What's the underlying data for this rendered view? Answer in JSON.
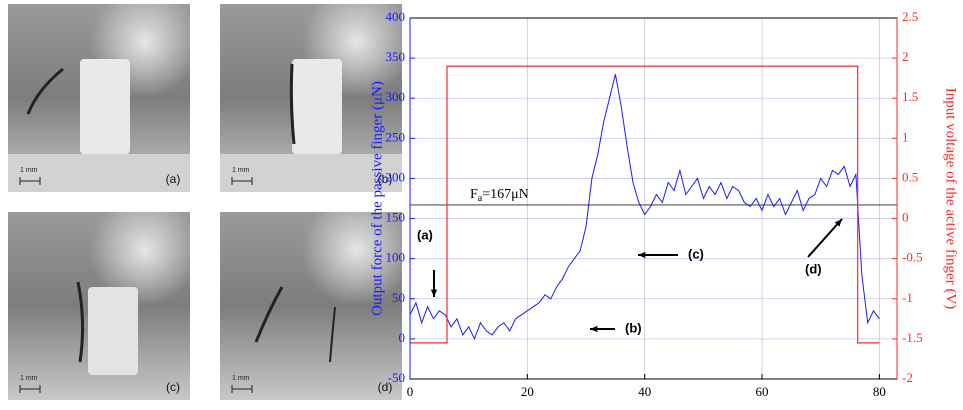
{
  "photos": [
    {
      "label": "(a)",
      "scale": "1 mm"
    },
    {
      "label": "(b)",
      "scale": "1 mm"
    },
    {
      "label": "(c)",
      "scale": "1 mm"
    },
    {
      "label": "(d)",
      "scale": "1 mm"
    }
  ],
  "chart_data": {
    "type": "line",
    "xlabel_left": "Output force of the passive finger (μN)",
    "ylabel_right": "Input voltage of the active finger (V)",
    "xlim": [
      0,
      83
    ],
    "xticks": [
      0,
      20,
      40,
      60,
      80
    ],
    "ylim": [
      -50,
      400
    ],
    "yticks": [
      -50,
      0,
      50,
      100,
      150,
      200,
      250,
      300,
      350,
      400
    ],
    "y2lim": [
      -2,
      2.5
    ],
    "y2ticks": [
      -2,
      -1.5,
      -1,
      -0.5,
      0,
      0.5,
      1,
      1.5,
      2,
      2.5
    ],
    "grid": true,
    "series": [
      {
        "name": "Output force",
        "color": "#1a1aff",
        "axis": "y",
        "x": [
          0,
          1,
          2,
          3,
          4,
          5,
          6,
          7,
          8,
          9,
          10,
          11,
          12,
          13,
          14,
          15,
          16,
          17,
          18,
          19,
          20,
          21,
          22,
          23,
          24,
          25,
          26,
          27,
          28,
          29,
          30,
          31,
          32,
          33,
          34,
          35,
          36,
          37,
          38,
          39,
          40,
          41,
          42,
          43,
          44,
          45,
          46,
          47,
          48,
          49,
          50,
          51,
          52,
          53,
          54,
          55,
          56,
          57,
          58,
          59,
          60,
          61,
          62,
          63,
          64,
          65,
          66,
          67,
          68,
          69,
          70,
          71,
          72,
          73,
          74,
          75,
          76,
          77,
          78,
          79,
          80
        ],
        "values": [
          30,
          45,
          20,
          40,
          25,
          35,
          30,
          15,
          25,
          5,
          15,
          0,
          20,
          10,
          5,
          15,
          20,
          10,
          25,
          30,
          35,
          40,
          45,
          55,
          50,
          65,
          75,
          90,
          100,
          110,
          140,
          200,
          230,
          270,
          300,
          330,
          290,
          240,
          195,
          170,
          155,
          165,
          180,
          170,
          195,
          185,
          210,
          180,
          190,
          200,
          175,
          190,
          180,
          195,
          175,
          190,
          185,
          170,
          165,
          175,
          160,
          180,
          165,
          175,
          155,
          170,
          185,
          160,
          175,
          180,
          200,
          190,
          210,
          205,
          215,
          190,
          205,
          80,
          20,
          35,
          25
        ]
      },
      {
        "name": "Input voltage",
        "color": "#ff2a2a",
        "axis": "y2",
        "x": [
          0,
          6.3,
          6.3,
          76.3,
          76.3,
          80
        ],
        "values": [
          -1.55,
          -1.55,
          1.9,
          1.9,
          -1.55,
          -1.55
        ]
      }
    ],
    "reference_line": {
      "value": 167,
      "symbol": "F",
      "subscript": "a",
      "text": "=167μN"
    },
    "annotations": [
      "(a)",
      "(b)",
      "(c)",
      "(d)"
    ]
  }
}
